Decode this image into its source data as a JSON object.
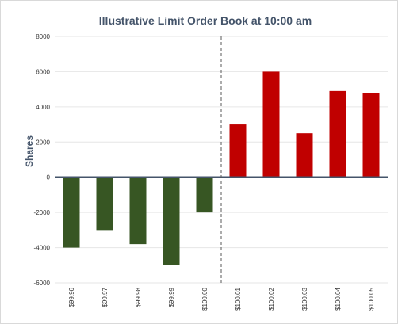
{
  "chart_data": {
    "type": "bar",
    "title": "Illustrative Limit Order Book at 10:00 am",
    "xlabel": "",
    "ylabel": "Shares",
    "ylim": [
      -6000,
      8000
    ],
    "yticks": [
      8000,
      6000,
      4000,
      2000,
      0,
      -2000,
      -4000,
      -6000
    ],
    "categories": [
      "$99.96",
      "$99.97",
      "$99.98",
      "$99.99",
      "$100.00",
      "$100.01",
      "$100.02",
      "$100.03",
      "$100.04",
      "$100.05"
    ],
    "values": [
      -4000,
      -3000,
      -3800,
      -5000,
      -2000,
      3000,
      6000,
      2500,
      4900,
      4800
    ],
    "bar_colors": [
      "#375623",
      "#375623",
      "#375623",
      "#375623",
      "#375623",
      "#c00000",
      "#c00000",
      "#c00000",
      "#c00000",
      "#c00000"
    ],
    "divider_after_category": "$100.00",
    "grid": true
  },
  "colors": {
    "bid": "#375623",
    "ask": "#c00000",
    "zero_line": "#44546a",
    "grid": "#e6e6e6"
  }
}
